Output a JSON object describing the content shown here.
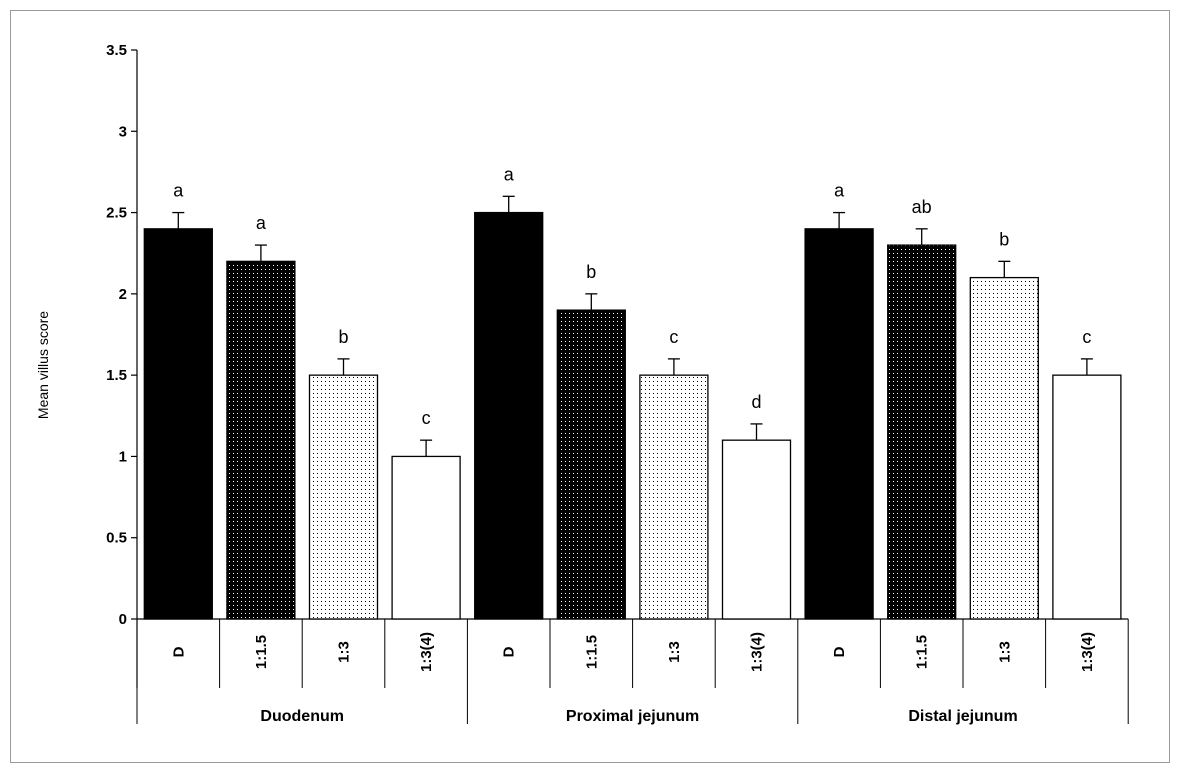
{
  "chart_data": {
    "type": "bar",
    "title": "",
    "ylabel": "Mean villus score",
    "ylim": [
      0,
      3.5
    ],
    "yticks": [
      "0",
      "0.5",
      "1",
      "1.5",
      "2",
      "2.5",
      "3",
      "3.5"
    ],
    "categories": [
      "D",
      "1:1.5",
      "1:3",
      "1:3(4)"
    ],
    "fills": [
      "solid-black",
      "dense-dots",
      "sparse-dots",
      "white"
    ],
    "groups": [
      {
        "name": "Duodenum",
        "values": [
          2.4,
          2.2,
          1.5,
          1.0
        ],
        "errors": [
          0.1,
          0.1,
          0.1,
          0.1
        ],
        "letters": [
          "a",
          "a",
          "b",
          "c"
        ]
      },
      {
        "name": "Proximal jejunum",
        "values": [
          2.5,
          1.9,
          1.5,
          1.1
        ],
        "errors": [
          0.1,
          0.1,
          0.1,
          0.1
        ],
        "letters": [
          "a",
          "b",
          "c",
          "d"
        ]
      },
      {
        "name": "Distal jejunum",
        "values": [
          2.4,
          2.3,
          2.1,
          1.5
        ],
        "errors": [
          0.1,
          0.1,
          0.1,
          0.1
        ],
        "letters": [
          "a",
          "ab",
          "b",
          "c"
        ]
      }
    ]
  }
}
